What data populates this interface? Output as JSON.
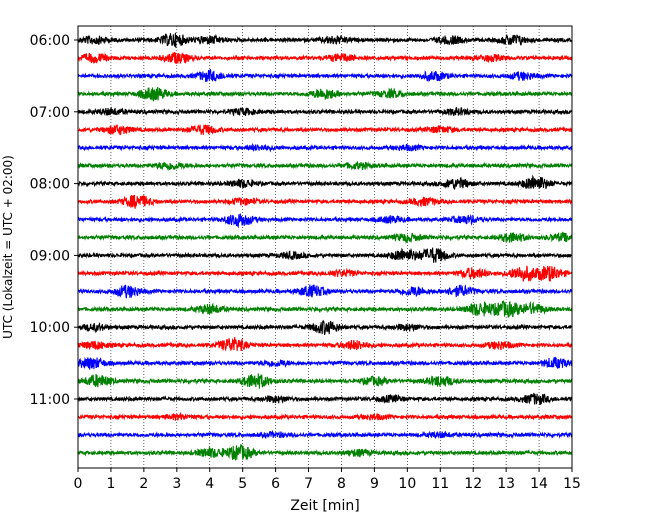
{
  "chart_data": {
    "type": "line",
    "title": "",
    "xlabel": "Zeit  [min]",
    "ylabel": "UTC (Lokalzeit = UTC + 02:00)",
    "xlim": [
      0,
      15
    ],
    "x_ticks": [
      0,
      1,
      2,
      3,
      4,
      5,
      6,
      7,
      8,
      9,
      10,
      11,
      12,
      13,
      14,
      15
    ],
    "x_tick_labels": [
      "0",
      "1",
      "2",
      "3",
      "4",
      "5",
      "6",
      "7",
      "8",
      "9",
      "10",
      "11",
      "12",
      "13",
      "14",
      "15"
    ],
    "y_tick_labels": [
      "06:00",
      "07:00",
      "08:00",
      "09:00",
      "10:00",
      "11:00"
    ],
    "grid": "vertical dotted lines at each minute",
    "color_cycle": [
      "#000000",
      "#ff0000",
      "#0000ff",
      "#008000"
    ],
    "trace_start_times": [
      "06:00",
      "06:15",
      "06:30",
      "06:45",
      "07:00",
      "07:15",
      "07:30",
      "07:45",
      "08:00",
      "08:15",
      "08:30",
      "08:45",
      "09:00",
      "09:15",
      "09:30",
      "09:45",
      "10:00",
      "10:15",
      "10:30",
      "10:45",
      "11:00",
      "11:15",
      "11:30",
      "11:45"
    ],
    "bursts": [
      [
        {
          "t": 0.5,
          "a": 0.5
        },
        {
          "t": 2.9,
          "a": 0.9
        },
        {
          "t": 4.0,
          "a": 0.5
        },
        {
          "t": 7.8,
          "a": 0.5
        },
        {
          "t": 11.3,
          "a": 0.5
        },
        {
          "t": 13.2,
          "a": 0.7
        }
      ],
      [
        {
          "t": 0.5,
          "a": 0.6
        },
        {
          "t": 3.0,
          "a": 0.7
        },
        {
          "t": 8.0,
          "a": 0.5
        },
        {
          "t": 12.5,
          "a": 0.4
        }
      ],
      [
        {
          "t": 4.0,
          "a": 0.7
        },
        {
          "t": 10.8,
          "a": 0.6
        },
        {
          "t": 13.5,
          "a": 0.5
        }
      ],
      [
        {
          "t": 2.3,
          "a": 0.9
        },
        {
          "t": 7.5,
          "a": 0.7
        },
        {
          "t": 9.5,
          "a": 0.5
        }
      ],
      [
        {
          "t": 1.0,
          "a": 0.4
        },
        {
          "t": 5.0,
          "a": 0.4
        },
        {
          "t": 11.5,
          "a": 0.4
        }
      ],
      [
        {
          "t": 1.2,
          "a": 0.6
        },
        {
          "t": 3.8,
          "a": 0.6
        },
        {
          "t": 11.0,
          "a": 0.4
        }
      ],
      [
        {
          "t": 5.5,
          "a": 0.3
        },
        {
          "t": 10.0,
          "a": 0.3
        }
      ],
      [
        {
          "t": 2.8,
          "a": 0.5
        },
        {
          "t": 8.5,
          "a": 0.4
        }
      ],
      [
        {
          "t": 5.0,
          "a": 0.5
        },
        {
          "t": 11.5,
          "a": 0.7
        },
        {
          "t": 13.9,
          "a": 1.0
        }
      ],
      [
        {
          "t": 1.8,
          "a": 0.9
        },
        {
          "t": 5.0,
          "a": 0.4
        },
        {
          "t": 10.5,
          "a": 0.5
        }
      ],
      [
        {
          "t": 4.9,
          "a": 0.9
        },
        {
          "t": 9.5,
          "a": 0.4
        },
        {
          "t": 11.8,
          "a": 0.5
        }
      ],
      [
        {
          "t": 10.0,
          "a": 0.5
        },
        {
          "t": 13.2,
          "a": 0.6
        },
        {
          "t": 14.7,
          "a": 0.5
        }
      ],
      [
        {
          "t": 9.9,
          "a": 0.8
        },
        {
          "t": 10.8,
          "a": 1.0
        },
        {
          "t": 6.5,
          "a": 0.4
        }
      ],
      [
        {
          "t": 12.0,
          "a": 0.7
        },
        {
          "t": 13.5,
          "a": 1.0
        },
        {
          "t": 14.3,
          "a": 1.0
        },
        {
          "t": 8.0,
          "a": 0.4
        }
      ],
      [
        {
          "t": 1.5,
          "a": 0.8
        },
        {
          "t": 7.1,
          "a": 0.8
        },
        {
          "t": 10.2,
          "a": 0.6
        },
        {
          "t": 11.6,
          "a": 0.7
        }
      ],
      [
        {
          "t": 12.2,
          "a": 0.9
        },
        {
          "t": 13.0,
          "a": 1.0
        },
        {
          "t": 13.8,
          "a": 0.7
        },
        {
          "t": 4.0,
          "a": 0.6
        }
      ],
      [
        {
          "t": 7.5,
          "a": 0.9
        },
        {
          "t": 0.5,
          "a": 0.4
        },
        {
          "t": 10.0,
          "a": 0.4
        }
      ],
      [
        {
          "t": 4.7,
          "a": 1.0
        },
        {
          "t": 8.4,
          "a": 0.6
        },
        {
          "t": 12.8,
          "a": 0.5
        },
        {
          "t": 0.5,
          "a": 0.5
        }
      ],
      [
        {
          "t": 0.4,
          "a": 0.8
        },
        {
          "t": 14.5,
          "a": 0.7
        },
        {
          "t": 6.0,
          "a": 0.4
        }
      ],
      [
        {
          "t": 0.6,
          "a": 0.8
        },
        {
          "t": 5.4,
          "a": 1.0
        },
        {
          "t": 11.0,
          "a": 0.7
        },
        {
          "t": 9.0,
          "a": 0.5
        }
      ],
      [
        {
          "t": 6.0,
          "a": 0.4
        },
        {
          "t": 13.9,
          "a": 0.7
        },
        {
          "t": 9.5,
          "a": 0.4
        }
      ],
      [
        {
          "t": 3.0,
          "a": 0.3
        },
        {
          "t": 9.0,
          "a": 0.3
        }
      ],
      [
        {
          "t": 6.0,
          "a": 0.3
        },
        {
          "t": 11.0,
          "a": 0.3
        }
      ],
      [
        {
          "t": 4.0,
          "a": 0.6
        },
        {
          "t": 4.9,
          "a": 1.0
        },
        {
          "t": 8.5,
          "a": 0.4
        }
      ]
    ]
  }
}
